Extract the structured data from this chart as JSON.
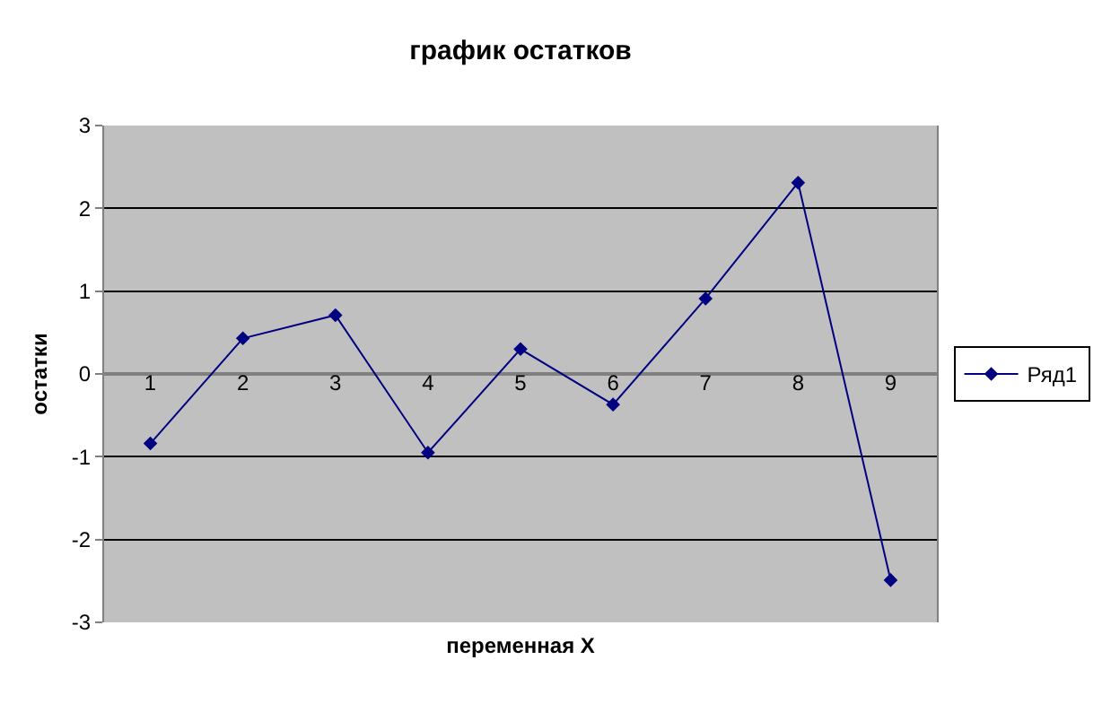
{
  "chart_data": {
    "type": "line",
    "title": "график остатков",
    "xlabel": "переменная X",
    "ylabel": "остатки",
    "categories": [
      "1",
      "2",
      "3",
      "4",
      "5",
      "6",
      "7",
      "8",
      "9"
    ],
    "series": [
      {
        "name": "Ряд1",
        "color": "#000080",
        "values": [
          -0.84,
          0.43,
          0.71,
          -0.95,
          0.3,
          -0.37,
          0.91,
          2.31,
          -2.49
        ]
      }
    ],
    "ylim": [
      -3,
      3
    ],
    "yticks": [
      -3,
      -2,
      -1,
      0,
      1,
      2,
      3
    ],
    "grid": "y",
    "legend": "right",
    "marker": "diamond",
    "line_style": "solid"
  }
}
